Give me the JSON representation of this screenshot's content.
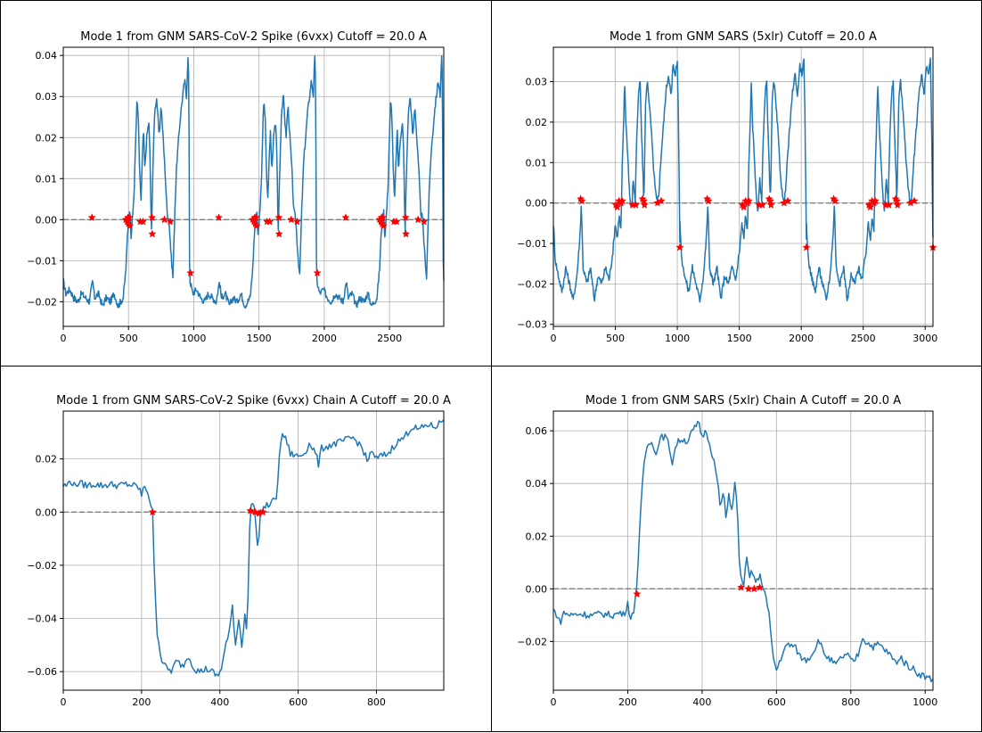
{
  "chart_data": [
    {
      "type": "line",
      "title": "Mode 1 from GNM SARS-CoV-2 Spike (6vxx) Cutoff = 20.0 A",
      "xlim": [
        0,
        2916
      ],
      "ylim": [
        -0.026,
        0.042
      ],
      "xticks": [
        0,
        500,
        1000,
        1500,
        2000,
        2500
      ],
      "yticks": [
        -0.02,
        -0.01,
        0.0,
        0.01,
        0.02,
        0.03,
        0.04
      ],
      "ytick_labels": [
        "−0.02",
        "−0.01",
        "0.00",
        "0.01",
        "0.02",
        "0.03",
        "0.04"
      ],
      "grid": true,
      "reference_line": 0,
      "line_color": "#1f77b4",
      "marker_color": "#ff0000",
      "period": 972,
      "copies": 3,
      "profile": [
        [
          0,
          -0.015
        ],
        [
          20,
          -0.018
        ],
        [
          50,
          -0.017
        ],
        [
          80,
          -0.019
        ],
        [
          110,
          -0.02
        ],
        [
          140,
          -0.018
        ],
        [
          170,
          -0.019
        ],
        [
          200,
          -0.02
        ],
        [
          225,
          -0.015
        ],
        [
          240,
          -0.019
        ],
        [
          270,
          -0.018
        ],
        [
          300,
          -0.021
        ],
        [
          330,
          -0.019
        ],
        [
          360,
          -0.02
        ],
        [
          390,
          -0.018
        ],
        [
          420,
          -0.021
        ],
        [
          460,
          -0.019
        ],
        [
          480,
          -0.012
        ],
        [
          490,
          -0.005
        ],
        [
          500,
          0.0
        ],
        [
          512,
          0.002
        ],
        [
          520,
          -0.004
        ],
        [
          530,
          0.0
        ],
        [
          545,
          0.008
        ],
        [
          555,
          0.02
        ],
        [
          565,
          0.029
        ],
        [
          575,
          0.025
        ],
        [
          585,
          0.012
        ],
        [
          595,
          0.004
        ],
        [
          605,
          0.014
        ],
        [
          615,
          0.022
        ],
        [
          625,
          0.012
        ],
        [
          640,
          0.02
        ],
        [
          655,
          0.024
        ],
        [
          665,
          0.016
        ],
        [
          675,
          -0.004
        ],
        [
          685,
          0.01
        ],
        [
          700,
          0.026
        ],
        [
          715,
          0.03
        ],
        [
          725,
          0.025
        ],
        [
          735,
          0.02
        ],
        [
          750,
          0.028
        ],
        [
          765,
          0.02
        ],
        [
          780,
          0.012
        ],
        [
          795,
          0.002
        ],
        [
          810,
          0.0
        ],
        [
          825,
          -0.008
        ],
        [
          840,
          -0.014
        ],
        [
          855,
          0.002
        ],
        [
          870,
          0.014
        ],
        [
          885,
          0.02
        ],
        [
          900,
          0.026
        ],
        [
          915,
          0.03
        ],
        [
          930,
          0.034
        ],
        [
          945,
          0.03
        ],
        [
          955,
          0.04
        ],
        [
          962,
          0.034
        ],
        [
          968,
          -0.01
        ],
        [
          972,
          -0.015
        ]
      ],
      "markers": [
        [
          220,
          0.0005
        ],
        [
          480,
          0.0
        ],
        [
          490,
          -0.0005
        ],
        [
          495,
          0.0005
        ],
        [
          500,
          -0.001
        ],
        [
          505,
          0.0005
        ],
        [
          510,
          -0.0015
        ],
        [
          590,
          -0.0005
        ],
        [
          610,
          -0.0005
        ],
        [
          680,
          0.0005
        ],
        [
          682,
          -0.0035
        ],
        [
          775,
          0.0
        ],
        [
          820,
          -0.0005
        ],
        [
          975,
          -0.013
        ]
      ]
    },
    {
      "type": "line",
      "title": "Mode 1 from GNM SARS (5xlr) Cutoff = 20.0 A",
      "xlim": [
        0,
        3063
      ],
      "ylim": [
        -0.0305,
        0.0385
      ],
      "xticks": [
        0,
        500,
        1000,
        1500,
        2000,
        2500,
        3000
      ],
      "yticks": [
        -0.03,
        -0.02,
        -0.01,
        0.0,
        0.01,
        0.02,
        0.03
      ],
      "ytick_labels": [
        "−0.03",
        "−0.02",
        "−0.01",
        "0.00",
        "0.01",
        "0.02",
        "0.03"
      ],
      "grid": true,
      "reference_line": 0,
      "line_color": "#1f77b4",
      "marker_color": "#ff0000",
      "period": 1021,
      "copies": 3,
      "profile": [
        [
          0,
          -0.005
        ],
        [
          15,
          -0.014
        ],
        [
          40,
          -0.018
        ],
        [
          70,
          -0.022
        ],
        [
          100,
          -0.016
        ],
        [
          130,
          -0.02
        ],
        [
          160,
          -0.024
        ],
        [
          190,
          -0.018
        ],
        [
          215,
          -0.008
        ],
        [
          225,
          0.0
        ],
        [
          240,
          -0.016
        ],
        [
          270,
          -0.02
        ],
        [
          300,
          -0.016
        ],
        [
          330,
          -0.024
        ],
        [
          360,
          -0.018
        ],
        [
          390,
          -0.02
        ],
        [
          420,
          -0.016
        ],
        [
          450,
          -0.019
        ],
        [
          480,
          -0.012
        ],
        [
          500,
          -0.005
        ],
        [
          515,
          -0.009
        ],
        [
          530,
          -0.003
        ],
        [
          545,
          -0.007
        ],
        [
          555,
          0.008
        ],
        [
          565,
          0.018
        ],
        [
          575,
          0.03
        ],
        [
          585,
          0.02
        ],
        [
          600,
          0.012
        ],
        [
          615,
          0.002
        ],
        [
          630,
          -0.002
        ],
        [
          645,
          0.006
        ],
        [
          660,
          0.0
        ],
        [
          670,
          0.014
        ],
        [
          680,
          0.022
        ],
        [
          690,
          0.028
        ],
        [
          700,
          0.03
        ],
        [
          710,
          0.018
        ],
        [
          720,
          0.01
        ],
        [
          730,
          0.0
        ],
        [
          745,
          0.026
        ],
        [
          760,
          0.03
        ],
        [
          775,
          0.024
        ],
        [
          790,
          0.018
        ],
        [
          805,
          0.01
        ],
        [
          820,
          0.004
        ],
        [
          835,
          0.0
        ],
        [
          850,
          0.002
        ],
        [
          870,
          0.012
        ],
        [
          890,
          0.02
        ],
        [
          910,
          0.028
        ],
        [
          930,
          0.032
        ],
        [
          950,
          0.026
        ],
        [
          965,
          0.034
        ],
        [
          985,
          0.032
        ],
        [
          1000,
          0.035
        ],
        [
          1010,
          0.02
        ],
        [
          1021,
          -0.012
        ]
      ],
      "markers": [
        [
          220,
          0.001
        ],
        [
          230,
          0.0005
        ],
        [
          505,
          -0.0005
        ],
        [
          515,
          -0.001
        ],
        [
          530,
          0.0005
        ],
        [
          545,
          0.0
        ],
        [
          555,
          0.0005
        ],
        [
          640,
          -0.0005
        ],
        [
          665,
          -0.0005
        ],
        [
          720,
          0.001
        ],
        [
          730,
          0.0005
        ],
        [
          735,
          -0.0005
        ],
        [
          840,
          0.0
        ],
        [
          870,
          0.0005
        ],
        [
          1020,
          -0.011
        ]
      ]
    },
    {
      "type": "line",
      "title": "Mode 1 from GNM SARS-CoV-2 Spike (6vxx) Chain A Cutoff = 20.0 A",
      "xlim": [
        0,
        972
      ],
      "ylim": [
        -0.067,
        0.038
      ],
      "xticks": [
        0,
        200,
        400,
        600,
        800
      ],
      "yticks": [
        -0.06,
        -0.04,
        -0.02,
        0.0,
        0.02
      ],
      "ytick_labels": [
        "−0.06",
        "−0.04",
        "−0.02",
        "0.00",
        "0.02"
      ],
      "grid": true,
      "reference_line": 0,
      "line_color": "#1f77b4",
      "marker_color": "#ff0000",
      "profile": [
        [
          0,
          0.01
        ],
        [
          10,
          0.01
        ],
        [
          18,
          0.012
        ],
        [
          28,
          0.01
        ],
        [
          40,
          0.011
        ],
        [
          60,
          0.01
        ],
        [
          80,
          0.0105
        ],
        [
          100,
          0.01
        ],
        [
          120,
          0.0105
        ],
        [
          140,
          0.01
        ],
        [
          160,
          0.0105
        ],
        [
          180,
          0.01
        ],
        [
          195,
          0.009
        ],
        [
          200,
          0.006
        ],
        [
          208,
          0.01
        ],
        [
          215,
          0.008
        ],
        [
          222,
          0.004
        ],
        [
          228,
          0.0
        ],
        [
          233,
          -0.025
        ],
        [
          240,
          -0.045
        ],
        [
          250,
          -0.055
        ],
        [
          260,
          -0.058
        ],
        [
          275,
          -0.06
        ],
        [
          290,
          -0.056
        ],
        [
          305,
          -0.058
        ],
        [
          320,
          -0.054
        ],
        [
          335,
          -0.059
        ],
        [
          350,
          -0.06
        ],
        [
          365,
          -0.059
        ],
        [
          380,
          -0.06
        ],
        [
          395,
          -0.062
        ],
        [
          405,
          -0.058
        ],
        [
          415,
          -0.05
        ],
        [
          425,
          -0.045
        ],
        [
          432,
          -0.035
        ],
        [
          440,
          -0.05
        ],
        [
          448,
          -0.04
        ],
        [
          456,
          -0.05
        ],
        [
          464,
          -0.038
        ],
        [
          470,
          -0.047
        ],
        [
          476,
          -0.006
        ],
        [
          482,
          0.006
        ],
        [
          490,
          0.0
        ],
        [
          497,
          -0.016
        ],
        [
          503,
          0.0
        ],
        [
          515,
          0.002
        ],
        [
          530,
          0.003
        ],
        [
          545,
          0.006
        ],
        [
          552,
          0.02
        ],
        [
          558,
          0.03
        ],
        [
          570,
          0.027
        ],
        [
          580,
          0.022
        ],
        [
          600,
          0.021
        ],
        [
          615,
          0.022
        ],
        [
          630,
          0.026
        ],
        [
          645,
          0.022
        ],
        [
          652,
          0.018
        ],
        [
          660,
          0.024
        ],
        [
          680,
          0.025
        ],
        [
          700,
          0.026
        ],
        [
          720,
          0.027
        ],
        [
          740,
          0.028
        ],
        [
          760,
          0.025
        ],
        [
          770,
          0.022
        ],
        [
          778,
          0.018
        ],
        [
          785,
          0.024
        ],
        [
          795,
          0.02
        ],
        [
          810,
          0.021
        ],
        [
          830,
          0.022
        ],
        [
          850,
          0.026
        ],
        [
          870,
          0.028
        ],
        [
          890,
          0.032
        ],
        [
          910,
          0.031
        ],
        [
          930,
          0.033
        ],
        [
          950,
          0.032
        ],
        [
          972,
          0.035
        ]
      ],
      "markers": [
        [
          228,
          0.0
        ],
        [
          478,
          0.0005
        ],
        [
          490,
          0.0
        ],
        [
          500,
          -0.0005
        ],
        [
          510,
          0.0
        ]
      ]
    },
    {
      "type": "line",
      "title": "Mode 1 from GNM SARS (5xlr) Chain A Cutoff = 20.0 A",
      "xlim": [
        0,
        1021
      ],
      "ylim": [
        -0.0385,
        0.0675
      ],
      "xticks": [
        0,
        200,
        400,
        600,
        800,
        1000
      ],
      "yticks": [
        -0.02,
        0.0,
        0.02,
        0.04,
        0.06
      ],
      "ytick_labels": [
        "−0.02",
        "0.00",
        "0.02",
        "0.04",
        "0.06"
      ],
      "grid": true,
      "reference_line": 0,
      "line_color": "#1f77b4",
      "marker_color": "#ff0000",
      "profile": [
        [
          0,
          -0.008
        ],
        [
          10,
          -0.01
        ],
        [
          18,
          -0.013
        ],
        [
          28,
          -0.009
        ],
        [
          45,
          -0.01
        ],
        [
          70,
          -0.0095
        ],
        [
          100,
          -0.01
        ],
        [
          130,
          -0.0095
        ],
        [
          160,
          -0.01
        ],
        [
          180,
          -0.009
        ],
        [
          190,
          -0.01
        ],
        [
          200,
          -0.005
        ],
        [
          208,
          -0.012
        ],
        [
          215,
          -0.009
        ],
        [
          222,
          -0.002
        ],
        [
          228,
          0.01
        ],
        [
          235,
          0.03
        ],
        [
          245,
          0.05
        ],
        [
          255,
          0.055
        ],
        [
          265,
          0.057
        ],
        [
          275,
          0.05
        ],
        [
          285,
          0.057
        ],
        [
          300,
          0.058
        ],
        [
          310,
          0.055
        ],
        [
          320,
          0.048
        ],
        [
          330,
          0.055
        ],
        [
          345,
          0.057
        ],
        [
          360,
          0.056
        ],
        [
          375,
          0.06
        ],
        [
          390,
          0.063
        ],
        [
          400,
          0.058
        ],
        [
          412,
          0.06
        ],
        [
          420,
          0.055
        ],
        [
          430,
          0.05
        ],
        [
          440,
          0.042
        ],
        [
          450,
          0.03
        ],
        [
          458,
          0.038
        ],
        [
          465,
          0.025
        ],
        [
          472,
          0.036
        ],
        [
          480,
          0.03
        ],
        [
          488,
          0.04
        ],
        [
          495,
          0.03
        ],
        [
          500,
          0.01
        ],
        [
          510,
          0.0
        ],
        [
          520,
          0.011
        ],
        [
          528,
          0.004
        ],
        [
          535,
          0.007
        ],
        [
          545,
          0.002
        ],
        [
          555,
          0.005
        ],
        [
          562,
          0.002
        ],
        [
          570,
          -0.002
        ],
        [
          580,
          -0.01
        ],
        [
          590,
          -0.025
        ],
        [
          600,
          -0.031
        ],
        [
          615,
          -0.025
        ],
        [
          630,
          -0.021
        ],
        [
          650,
          -0.022
        ],
        [
          665,
          -0.026
        ],
        [
          680,
          -0.027
        ],
        [
          695,
          -0.025
        ],
        [
          705,
          -0.022
        ],
        [
          715,
          -0.019
        ],
        [
          725,
          -0.024
        ],
        [
          745,
          -0.027
        ],
        [
          760,
          -0.029
        ],
        [
          775,
          -0.026
        ],
        [
          790,
          -0.025
        ],
        [
          805,
          -0.028
        ],
        [
          815,
          -0.026
        ],
        [
          823,
          -0.024
        ],
        [
          830,
          -0.018
        ],
        [
          840,
          -0.02
        ],
        [
          860,
          -0.022
        ],
        [
          875,
          -0.021
        ],
        [
          890,
          -0.023
        ],
        [
          905,
          -0.025
        ],
        [
          920,
          -0.028
        ],
        [
          935,
          -0.026
        ],
        [
          950,
          -0.029
        ],
        [
          965,
          -0.03
        ],
        [
          980,
          -0.032
        ],
        [
          995,
          -0.033
        ],
        [
          1010,
          -0.034
        ],
        [
          1021,
          -0.034
        ]
      ],
      "markers": [
        [
          225,
          -0.002
        ],
        [
          505,
          0.0005
        ],
        [
          525,
          0.0
        ],
        [
          540,
          0.0
        ],
        [
          555,
          0.0005
        ]
      ]
    }
  ]
}
